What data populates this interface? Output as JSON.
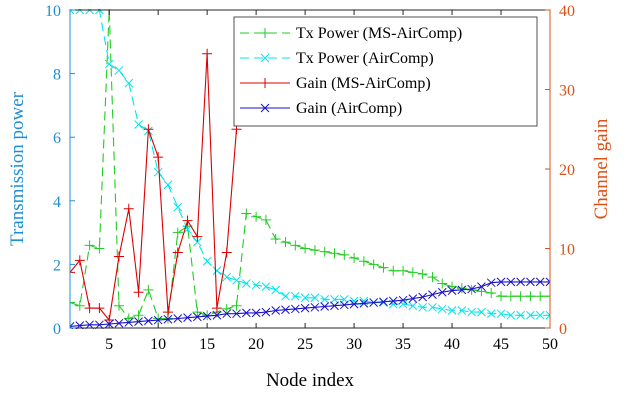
{
  "chart_data": {
    "type": "line",
    "xlabel": "Node index",
    "ylabel_left": "Transmission power",
    "ylabel_right": "Channel gain",
    "xlim": [
      1,
      50
    ],
    "ylim_left": [
      0,
      10
    ],
    "ylim_right": [
      0,
      40
    ],
    "xticks": [
      5,
      10,
      15,
      20,
      25,
      30,
      35,
      40,
      45,
      50
    ],
    "yticks_left": [
      0,
      2,
      4,
      6,
      8,
      10
    ],
    "yticks_right": [
      0,
      10,
      20,
      30,
      40
    ],
    "legend_position": "top-right",
    "grid": false,
    "colors": {
      "left_axis": "#1f8fd0",
      "right_axis": "#d95319"
    },
    "series": [
      {
        "name": "Tx Power (MS-AirComp)",
        "axis": "left",
        "color": "#22cc22",
        "style": "dashed",
        "marker": "plus",
        "values": [
          0.8,
          0.7,
          2.6,
          2.5,
          10.0,
          0.7,
          0.3,
          0.4,
          1.2,
          0.3,
          0.3,
          3.0,
          3.2,
          0.5,
          0.4,
          0.5,
          0.6,
          0.7,
          3.6,
          3.5,
          3.4,
          2.8,
          2.7,
          2.6,
          2.5,
          2.45,
          2.4,
          2.35,
          2.3,
          2.2,
          2.1,
          2.0,
          1.9,
          1.8,
          1.8,
          1.75,
          1.7,
          1.6,
          1.4,
          1.3,
          1.25,
          1.2,
          1.15,
          1.1,
          1.0,
          1.0,
          1.0,
          1.0,
          1.0,
          1.0
        ]
      },
      {
        "name": "Tx Power (AirComp)",
        "axis": "left",
        "color": "#00e5ee",
        "style": "dashed",
        "marker": "x",
        "values": [
          10.0,
          10.0,
          10.0,
          10.0,
          8.3,
          8.1,
          7.7,
          6.4,
          6.2,
          4.9,
          4.5,
          3.8,
          3.1,
          2.7,
          2.1,
          1.8,
          1.6,
          1.5,
          1.4,
          1.35,
          1.3,
          1.2,
          1.0,
          1.0,
          0.95,
          0.95,
          0.9,
          0.9,
          0.9,
          0.85,
          0.85,
          0.8,
          0.8,
          0.75,
          0.75,
          0.7,
          0.65,
          0.65,
          0.6,
          0.55,
          0.55,
          0.5,
          0.5,
          0.45,
          0.45,
          0.4,
          0.4,
          0.4,
          0.4,
          0.4
        ]
      },
      {
        "name": "Gain (MS-AirComp)",
        "axis": "right",
        "color": "#dd0000",
        "style": "solid",
        "marker": "plus",
        "values": [
          7.0,
          8.5,
          2.5,
          2.5,
          1.0,
          9.0,
          15.0,
          4.5,
          25.0,
          21.5,
          2.0,
          9.5,
          13.5,
          11.5,
          34.5,
          2.5,
          9.5,
          25.0
        ]
      },
      {
        "name": "Gain (AirComp)",
        "axis": "right",
        "color": "#1a12cc",
        "style": "solid",
        "marker": "x",
        "values": [
          0.2,
          0.3,
          0.4,
          0.4,
          0.5,
          0.6,
          0.7,
          0.8,
          0.9,
          1.0,
          1.1,
          1.2,
          1.3,
          1.4,
          1.5,
          1.6,
          1.8,
          1.8,
          1.9,
          1.9,
          2.0,
          2.2,
          2.3,
          2.4,
          2.5,
          2.6,
          2.7,
          2.8,
          2.9,
          3.0,
          3.1,
          3.2,
          3.3,
          3.4,
          3.5,
          3.7,
          3.9,
          4.2,
          4.5,
          4.7,
          4.8,
          4.9,
          5.2,
          5.7,
          5.8,
          5.8,
          5.8,
          5.8,
          5.8,
          5.8
        ]
      }
    ]
  }
}
